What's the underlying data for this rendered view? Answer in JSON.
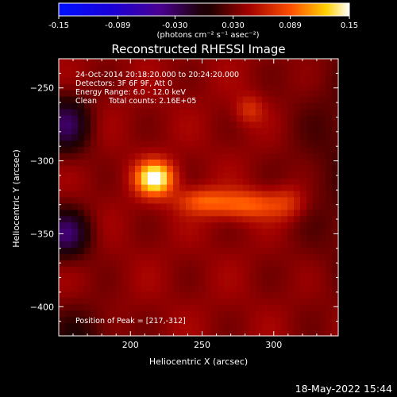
{
  "chart_data": {
    "type": "heatmap",
    "title": "Reconstructed RHESSI Image",
    "xlabel": "Heliocentric X (arcsec)",
    "ylabel": "Heliocentric Y (arcsec)",
    "xlim": [
      150,
      345
    ],
    "ylim": [
      -420,
      -230
    ],
    "x_ticks": [
      200,
      250,
      300
    ],
    "y_ticks": [
      -250,
      -300,
      -350,
      -400
    ],
    "colorbar": {
      "label": "(photons cm⁻² s⁻¹ asec⁻²)",
      "ticks": [
        "-0.15",
        "-0.089",
        "-0.030",
        "0.030",
        "0.089",
        "0.15"
      ],
      "min": -0.15,
      "max": 0.15
    },
    "info_lines": [
      "24-Oct-2014 20:18:20.000 to 20:24:20.000",
      "Detectors: 3F 6F 9F, Att 0",
      "Energy Range: 6.0 - 12.0 keV",
      "Clean     Total counts: 2.16E+05"
    ],
    "peak_label": "Position of Peak = [217,-312]",
    "peak": [
      217,
      -312
    ],
    "date_stamp": "18-May-2022 15:44",
    "background_level": 0.04,
    "sources": [
      {
        "x": 217,
        "y": -312,
        "sx": 9,
        "sy": 8,
        "amp": 0.12
      },
      {
        "x": 280,
        "y": -330,
        "sx": 22,
        "sy": 7,
        "amp": 0.055
      },
      {
        "x": 248,
        "y": -327,
        "sx": 12,
        "sy": 6,
        "amp": 0.035
      },
      {
        "x": 310,
        "y": -328,
        "sx": 8,
        "sy": 9,
        "amp": 0.02
      },
      {
        "x": 283,
        "y": -265,
        "sx": 7,
        "sy": 7,
        "amp": 0.03
      },
      {
        "x": 345,
        "y": -300,
        "sx": 25,
        "sy": 60,
        "amp": -0.02
      },
      {
        "x": 155,
        "y": -275,
        "sx": 12,
        "sy": 14,
        "amp": -0.065
      },
      {
        "x": 155,
        "y": -350,
        "sx": 12,
        "sy": 12,
        "amp": -0.07
      },
      {
        "x": 165,
        "y": -420,
        "sx": 18,
        "sy": 15,
        "amp": -0.03
      }
    ]
  }
}
